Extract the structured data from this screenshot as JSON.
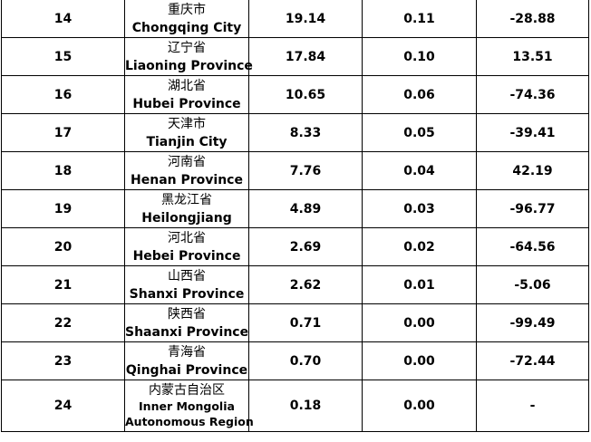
{
  "table": {
    "rows": [
      {
        "rank": "14",
        "zh": "重庆市",
        "en": [
          "Chongqing City"
        ],
        "v1": "19.14",
        "v2": "0.11",
        "v3": "-28.88"
      },
      {
        "rank": "15",
        "zh": "辽宁省",
        "en": [
          "Liaoning Province"
        ],
        "v1": "17.84",
        "v2": "0.10",
        "v3": "13.51"
      },
      {
        "rank": "16",
        "zh": "湖北省",
        "en": [
          "Hubei Province"
        ],
        "v1": "10.65",
        "v2": "0.06",
        "v3": "-74.36"
      },
      {
        "rank": "17",
        "zh": "天津市",
        "en": [
          "Tianjin City"
        ],
        "v1": "8.33",
        "v2": "0.05",
        "v3": "-39.41"
      },
      {
        "rank": "18",
        "zh": "河南省",
        "en": [
          "Henan Province"
        ],
        "v1": "7.76",
        "v2": "0.04",
        "v3": "42.19"
      },
      {
        "rank": "19",
        "zh": "黑龙江省",
        "en": [
          "Heilongjiang"
        ],
        "v1": "4.89",
        "v2": "0.03",
        "v3": "-96.77"
      },
      {
        "rank": "20",
        "zh": "河北省",
        "en": [
          "Hebei Province"
        ],
        "v1": "2.69",
        "v2": "0.02",
        "v3": "-64.56"
      },
      {
        "rank": "21",
        "zh": "山西省",
        "en": [
          "Shanxi Province"
        ],
        "v1": "2.62",
        "v2": "0.01",
        "v3": "-5.06"
      },
      {
        "rank": "22",
        "zh": "陕西省",
        "en": [
          "Shaanxi Province"
        ],
        "v1": "0.71",
        "v2": "0.00",
        "v3": "-99.49"
      },
      {
        "rank": "23",
        "zh": "青海省",
        "en": [
          "Qinghai Province"
        ],
        "v1": "0.70",
        "v2": "0.00",
        "v3": "-72.44"
      },
      {
        "rank": "24",
        "zh": "内蒙古自治区",
        "en": [
          "Inner Mongolia",
          "Autonomous Region"
        ],
        "v1": "0.18",
        "v2": "0.00",
        "v3": "-"
      }
    ]
  }
}
